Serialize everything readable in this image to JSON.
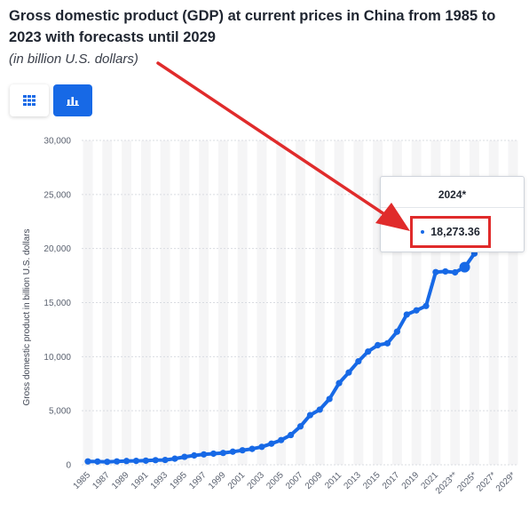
{
  "header": {
    "title": "Gross domestic product (GDP) at current prices in China from 1985 to 2023 with forecasts until 2029",
    "subtitle": "(in billion U.S. dollars)"
  },
  "view_tabs": [
    {
      "icon": "table-icon",
      "active": false
    },
    {
      "icon": "bar-chart-icon",
      "active": true
    }
  ],
  "colors": {
    "accent": "#1769e6",
    "annotation": "#e02b2b",
    "band": "#f5f5f6",
    "grid": "#d9dce1"
  },
  "tooltip": {
    "year": "2024*",
    "value": "18,273.36"
  },
  "chart_data": {
    "type": "line",
    "title": "",
    "ylabel": "Gross domestic product in billion U.S. dollars",
    "xlabel": "",
    "ylim": [
      0,
      30000
    ],
    "yticks": [
      0,
      5000,
      10000,
      15000,
      20000,
      25000,
      30000
    ],
    "ytick_labels": [
      "0",
      "5,000",
      "10,000",
      "15,000",
      "20,000",
      "25,000",
      "30,000"
    ],
    "x": [
      "1985",
      "1986",
      "1987",
      "1988",
      "1989",
      "1990",
      "1991",
      "1992",
      "1993",
      "1994",
      "1995",
      "1996",
      "1997",
      "1998",
      "1999",
      "2000",
      "2001",
      "2002",
      "2003",
      "2004",
      "2005",
      "2006",
      "2007",
      "2008",
      "2009",
      "2010",
      "2011",
      "2012",
      "2013",
      "2014",
      "2015",
      "2016",
      "2017",
      "2018",
      "2019",
      "2020",
      "2021",
      "2022",
      "2023",
      "2024*",
      "2025*",
      "2026*",
      "2027*",
      "2028*",
      "2029*"
    ],
    "xtick_labels": [
      "1985",
      "1987",
      "1989",
      "1991",
      "1993",
      "1995",
      "1997",
      "1999",
      "2001",
      "2003",
      "2005",
      "2007",
      "2009",
      "2011",
      "2013",
      "2015",
      "2017",
      "2019",
      "2021",
      "2023**",
      "2025*",
      "2027*",
      "2029*"
    ],
    "values": [
      310,
      300,
      273,
      313,
      347,
      361,
      383,
      427,
      445,
      564,
      734,
      863,
      962,
      1029,
      1094,
      1211,
      1339,
      1471,
      1660,
      1955,
      2286,
      2752,
      3552,
      4594,
      5102,
      6087,
      7552,
      8532,
      9570,
      10476,
      11062,
      11233,
      12310,
      13895,
      14280,
      14688,
      17820,
      17882,
      17795,
      18273,
      19535,
      null,
      null,
      null,
      null
    ],
    "highlight_index": 39,
    "grid": true,
    "legend": "none"
  }
}
